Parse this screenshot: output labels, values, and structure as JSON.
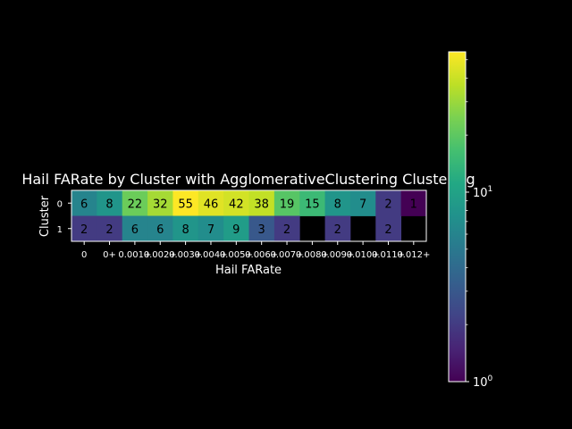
{
  "chart_data": {
    "type": "heatmap",
    "title": "Hail FARate by Cluster with AgglomerativeClustering Clustering",
    "xlabel": "Hail FARate",
    "ylabel": "Cluster",
    "x_tick_labels": [
      "0",
      "0+",
      "0.001+",
      "0.002+",
      "0.003+",
      "0.004+",
      "0.005+",
      "0.006+",
      "0.007+",
      "0.008+",
      "0.009+",
      "0.010+",
      "0.011+",
      "0.012+"
    ],
    "y_tick_labels": [
      "0",
      "1"
    ],
    "rows": [
      {
        "cluster": "0",
        "values": [
          6,
          8,
          22,
          32,
          55,
          46,
          42,
          38,
          19,
          15,
          8,
          7,
          2,
          1
        ]
      },
      {
        "cluster": "1",
        "values": [
          2,
          2,
          6,
          6,
          8,
          7,
          9,
          3,
          2,
          null,
          2,
          null,
          2,
          null
        ]
      }
    ],
    "colorbar": {
      "scale": "log",
      "colormap": "viridis",
      "range": [
        1,
        55
      ],
      "tick_labels": [
        "10^0",
        "10^1"
      ]
    },
    "grid": false
  }
}
